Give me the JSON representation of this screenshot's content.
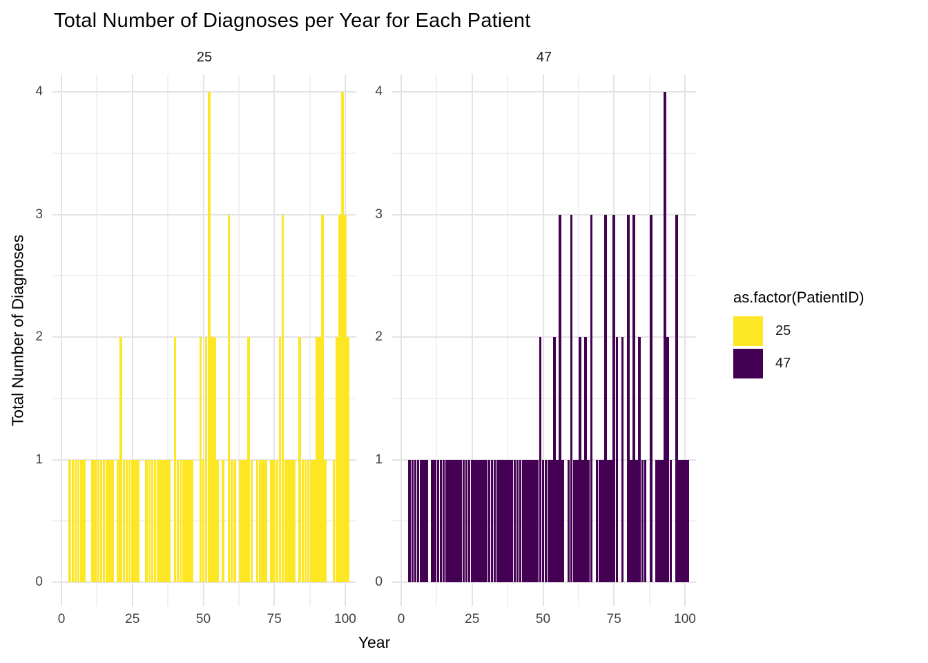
{
  "chart_data": {
    "type": "bar",
    "title": "Total Number of Diagnoses per Year for Each Patient",
    "xlabel": "Year",
    "ylabel": "Total Number of Diagnoses",
    "x_ticks": [
      0,
      25,
      50,
      75,
      100
    ],
    "y_ticks": [
      0,
      1,
      2,
      3,
      4
    ],
    "x_minor_ticks": [
      12.5,
      37.5,
      62.5,
      87.5
    ],
    "y_minor_ticks": [
      0.5,
      1.5,
      2.5,
      3.5
    ],
    "xlim": [
      0,
      100
    ],
    "ylim": [
      0,
      4
    ],
    "grid": "on",
    "legend": {
      "title": "as.factor(PatientID)",
      "position": "right",
      "entries": [
        {
          "label": "25",
          "color": "#FDE725"
        },
        {
          "label": "47",
          "color": "#440154"
        }
      ]
    },
    "facets": [
      {
        "label": "25",
        "color": "#FDE725",
        "bars": [
          [
            3,
            1
          ],
          [
            4,
            1
          ],
          [
            5,
            1
          ],
          [
            6,
            1
          ],
          [
            7,
            1
          ],
          [
            8,
            1
          ],
          [
            9,
            0
          ],
          [
            10,
            0
          ],
          [
            11,
            1
          ],
          [
            12,
            1
          ],
          [
            13,
            1
          ],
          [
            14,
            1
          ],
          [
            15,
            1
          ],
          [
            16,
            1
          ],
          [
            17,
            1
          ],
          [
            18,
            1
          ],
          [
            19,
            0
          ],
          [
            20,
            1
          ],
          [
            21,
            2
          ],
          [
            22,
            1
          ],
          [
            23,
            1
          ],
          [
            24,
            1
          ],
          [
            25,
            1
          ],
          [
            26,
            1
          ],
          [
            27,
            1
          ],
          [
            28,
            0
          ],
          [
            29,
            0
          ],
          [
            30,
            1
          ],
          [
            31,
            1
          ],
          [
            32,
            1
          ],
          [
            33,
            1
          ],
          [
            34,
            1
          ],
          [
            35,
            1
          ],
          [
            36,
            1
          ],
          [
            37,
            1
          ],
          [
            38,
            1
          ],
          [
            39,
            0
          ],
          [
            40,
            2
          ],
          [
            41,
            1
          ],
          [
            42,
            1
          ],
          [
            43,
            1
          ],
          [
            44,
            1
          ],
          [
            45,
            1
          ],
          [
            46,
            1
          ],
          [
            47,
            0
          ],
          [
            48,
            0
          ],
          [
            49,
            2
          ],
          [
            50,
            1
          ],
          [
            51,
            2
          ],
          [
            52,
            4
          ],
          [
            53,
            2
          ],
          [
            54,
            2
          ],
          [
            55,
            1
          ],
          [
            56,
            0
          ],
          [
            57,
            1
          ],
          [
            58,
            0
          ],
          [
            59,
            3
          ],
          [
            60,
            1
          ],
          [
            61,
            1
          ],
          [
            62,
            0
          ],
          [
            63,
            1
          ],
          [
            64,
            1
          ],
          [
            65,
            1
          ],
          [
            66,
            2
          ],
          [
            67,
            1
          ],
          [
            68,
            0
          ],
          [
            69,
            1
          ],
          [
            70,
            1
          ],
          [
            71,
            1
          ],
          [
            72,
            1
          ],
          [
            73,
            0
          ],
          [
            74,
            1
          ],
          [
            75,
            1
          ],
          [
            76,
            1
          ],
          [
            77,
            2
          ],
          [
            78,
            3
          ],
          [
            79,
            1
          ],
          [
            80,
            1
          ],
          [
            81,
            1
          ],
          [
            82,
            1
          ],
          [
            83,
            0
          ],
          [
            84,
            2
          ],
          [
            85,
            1
          ],
          [
            86,
            1
          ],
          [
            87,
            1
          ],
          [
            88,
            1
          ],
          [
            89,
            1
          ],
          [
            90,
            2
          ],
          [
            91,
            2
          ],
          [
            92,
            3
          ],
          [
            93,
            1
          ],
          [
            94,
            0
          ],
          [
            95,
            0
          ],
          [
            96,
            1
          ],
          [
            97,
            2
          ],
          [
            98,
            3
          ],
          [
            99,
            4
          ],
          [
            100,
            3
          ],
          [
            101,
            2
          ]
        ]
      },
      {
        "label": "47",
        "color": "#440154",
        "bars": [
          [
            3,
            1
          ],
          [
            4,
            1
          ],
          [
            5,
            1
          ],
          [
            6,
            1
          ],
          [
            7,
            1
          ],
          [
            8,
            1
          ],
          [
            9,
            1
          ],
          [
            10,
            0
          ],
          [
            11,
            1
          ],
          [
            12,
            1
          ],
          [
            13,
            1
          ],
          [
            14,
            1
          ],
          [
            15,
            1
          ],
          [
            16,
            1
          ],
          [
            17,
            1
          ],
          [
            18,
            1
          ],
          [
            19,
            1
          ],
          [
            20,
            1
          ],
          [
            21,
            1
          ],
          [
            22,
            1
          ],
          [
            23,
            1
          ],
          [
            24,
            1
          ],
          [
            25,
            1
          ],
          [
            26,
            1
          ],
          [
            27,
            1
          ],
          [
            28,
            1
          ],
          [
            29,
            1
          ],
          [
            30,
            1
          ],
          [
            31,
            1
          ],
          [
            32,
            1
          ],
          [
            33,
            1
          ],
          [
            34,
            1
          ],
          [
            35,
            1
          ],
          [
            36,
            1
          ],
          [
            37,
            1
          ],
          [
            38,
            1
          ],
          [
            39,
            1
          ],
          [
            40,
            1
          ],
          [
            41,
            1
          ],
          [
            42,
            1
          ],
          [
            43,
            1
          ],
          [
            44,
            1
          ],
          [
            45,
            1
          ],
          [
            46,
            1
          ],
          [
            47,
            1
          ],
          [
            48,
            1
          ],
          [
            49,
            2
          ],
          [
            50,
            1
          ],
          [
            51,
            1
          ],
          [
            52,
            1
          ],
          [
            53,
            1
          ],
          [
            54,
            2
          ],
          [
            55,
            1
          ],
          [
            56,
            3
          ],
          [
            57,
            1
          ],
          [
            58,
            0
          ],
          [
            59,
            1
          ],
          [
            60,
            3
          ],
          [
            61,
            1
          ],
          [
            62,
            1
          ],
          [
            63,
            2
          ],
          [
            64,
            1
          ],
          [
            65,
            2
          ],
          [
            66,
            1
          ],
          [
            67,
            3
          ],
          [
            68,
            0
          ],
          [
            69,
            1
          ],
          [
            70,
            1
          ],
          [
            71,
            1
          ],
          [
            72,
            3
          ],
          [
            73,
            1
          ],
          [
            74,
            1
          ],
          [
            75,
            3
          ],
          [
            76,
            2
          ],
          [
            77,
            0
          ],
          [
            78,
            2
          ],
          [
            79,
            0
          ],
          [
            80,
            3
          ],
          [
            81,
            1
          ],
          [
            82,
            3
          ],
          [
            83,
            1
          ],
          [
            84,
            2
          ],
          [
            85,
            1
          ],
          [
            86,
            1
          ],
          [
            87,
            0
          ],
          [
            88,
            3
          ],
          [
            89,
            0
          ],
          [
            90,
            1
          ],
          [
            91,
            1
          ],
          [
            92,
            1
          ],
          [
            93,
            4
          ],
          [
            94,
            2
          ],
          [
            95,
            1
          ],
          [
            96,
            0
          ],
          [
            97,
            3
          ],
          [
            98,
            1
          ],
          [
            99,
            1
          ],
          [
            100,
            1
          ],
          [
            101,
            1
          ]
        ]
      }
    ]
  }
}
